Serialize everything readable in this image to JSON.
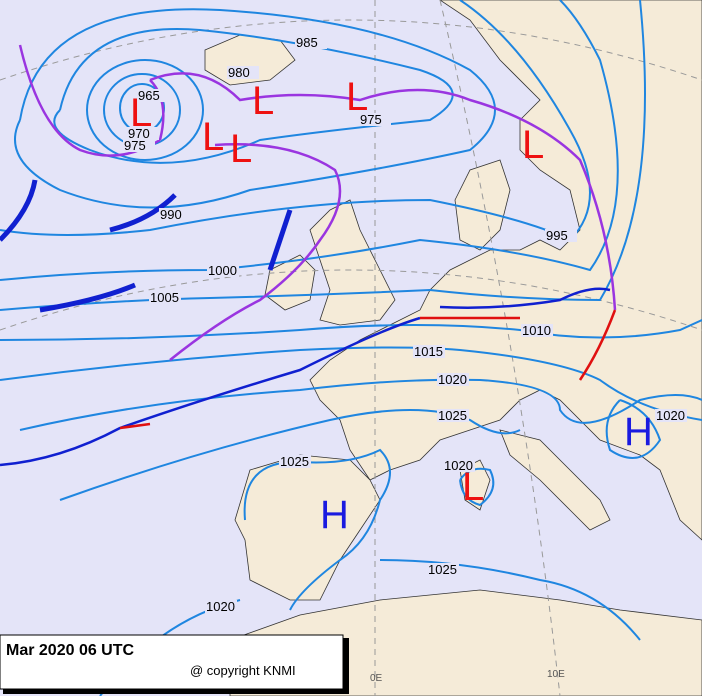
{
  "isobar_labels": [
    "985",
    "980",
    "975",
    "965",
    "970",
    "975",
    "990",
    "995",
    "1000",
    "1005",
    "1010",
    "1015",
    "1020",
    "1025",
    "1020",
    "1025",
    "1020",
    "1025",
    "1020"
  ],
  "centers": [
    {
      "label": "L"
    },
    {
      "label": "L"
    },
    {
      "label": "L"
    },
    {
      "label": "L"
    },
    {
      "label": "L"
    },
    {
      "label": "L"
    },
    {
      "label": "L"
    },
    {
      "label": "H"
    },
    {
      "label": "H"
    }
  ],
  "meridians": [
    "0E",
    "10E"
  ],
  "footer": {
    "date": "Mar 2020 06 UTC",
    "copyright": "@ copyright KNMI"
  }
}
